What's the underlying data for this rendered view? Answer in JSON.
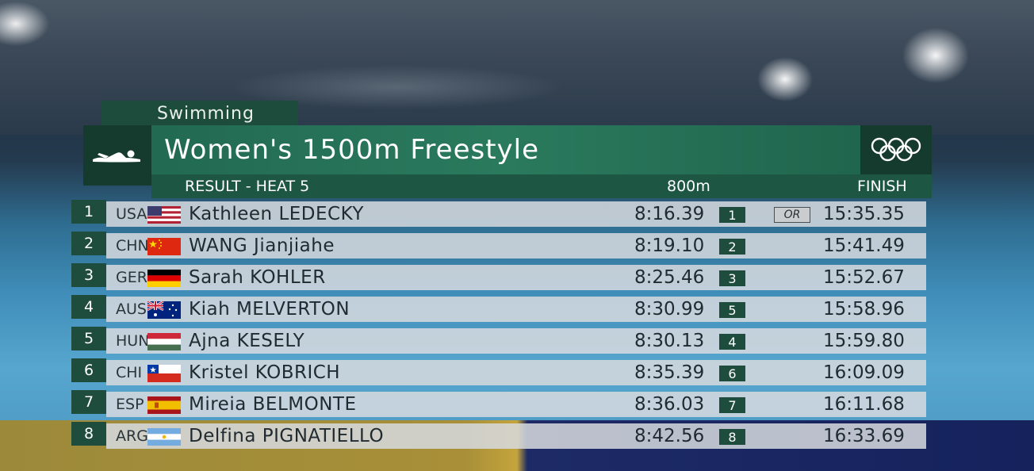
{
  "graphic": {
    "sport_label": "Swimming",
    "event_title": "Women's 1500m Freestyle",
    "sport_icon": "swimmer-icon",
    "logo_icon": "olympic-rings-icon",
    "columns": {
      "result": "RESULT - HEAT 5",
      "split": "800m",
      "finish": "FINISH"
    }
  },
  "results": [
    {
      "rank": "1",
      "noc": "USA",
      "flag": "usa-flag-icon",
      "name": "Kathleen LEDECKY",
      "split": "8:16.39",
      "split_rank": "1",
      "record": "OR",
      "finish": "15:35.35"
    },
    {
      "rank": "2",
      "noc": "CHN",
      "flag": "china-flag-icon",
      "name": "WANG Jianjiahe",
      "split": "8:19.10",
      "split_rank": "2",
      "record": "",
      "finish": "15:41.49"
    },
    {
      "rank": "3",
      "noc": "GER",
      "flag": "germany-flag-icon",
      "name": "Sarah KOHLER",
      "split": "8:25.46",
      "split_rank": "3",
      "record": "",
      "finish": "15:52.67"
    },
    {
      "rank": "4",
      "noc": "AUS",
      "flag": "australia-flag-icon",
      "name": "Kiah MELVERTON",
      "split": "8:30.99",
      "split_rank": "5",
      "record": "",
      "finish": "15:58.96"
    },
    {
      "rank": "5",
      "noc": "HUN",
      "flag": "hungary-flag-icon",
      "name": "Ajna KESELY",
      "split": "8:30.13",
      "split_rank": "4",
      "record": "",
      "finish": "15:59.80"
    },
    {
      "rank": "6",
      "noc": "CHI",
      "flag": "chile-flag-icon",
      "name": "Kristel KOBRICH",
      "split": "8:35.39",
      "split_rank": "6",
      "record": "",
      "finish": "16:09.09"
    },
    {
      "rank": "7",
      "noc": "ESP",
      "flag": "spain-flag-icon",
      "name": "Mireia BELMONTE",
      "split": "8:36.03",
      "split_rank": "7",
      "record": "",
      "finish": "16:11.68"
    },
    {
      "rank": "8",
      "noc": "ARG",
      "flag": "argentina-flag-icon",
      "name": "Delfina PIGNATIELLO",
      "split": "8:42.56",
      "split_rank": "8",
      "record": "",
      "finish": "16:33.69"
    }
  ]
}
